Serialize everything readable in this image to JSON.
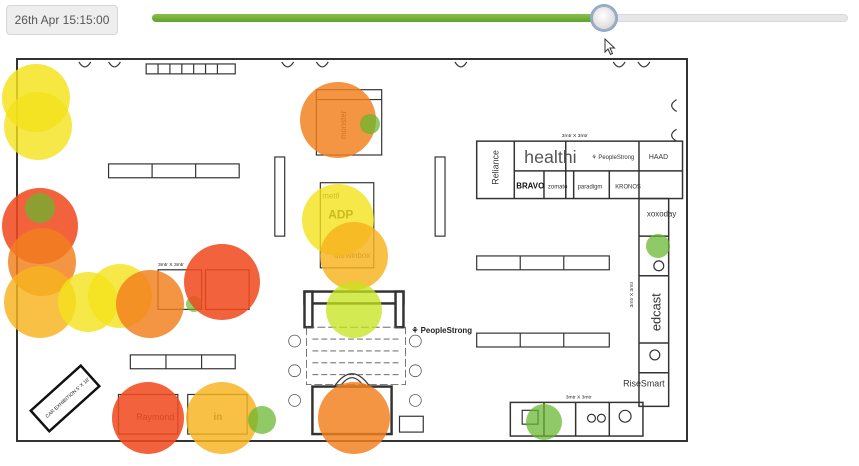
{
  "timeline": {
    "timestamp": "26th Apr 15:15:00",
    "progress_percent": 65
  },
  "floorplan": {
    "brands": {
      "healthi": "healthi",
      "peoplestrong_small": "⚘ PeopleStrong",
      "haad": "HAAD",
      "reliance": "Reliance",
      "bravo": "BRAVO",
      "zomato": "zomato",
      "paradigm": "paradigm",
      "kronos": "KRONOS",
      "xoxoday": "xoxoday",
      "edcast": "edcast",
      "risesmart": "RiseSmart",
      "raymond": "Raymond",
      "linkedin": "in",
      "peoplestrong_main": "⚘ PeopleStrong",
      "mettl": "mettl",
      "abc": "ADP",
      "darwinbox": "darwinbox",
      "monster": "monster"
    },
    "dimension_labels": {
      "top_right": "3mtr X 3mtr",
      "left_mid": "3mtr X 3mtr",
      "right_vertical": "3mtr X 3mtr",
      "bottom_right": "3mtr X 3mtr",
      "car_display": "CAR EXHIBITION 5' X 18'"
    }
  },
  "heatmap": {
    "colors": {
      "red": "#f04a1e",
      "orange": "#f2801e",
      "amber": "#f6b31e",
      "yellow": "#f4e21a",
      "lime": "#c6e41c",
      "green": "#66b62e"
    },
    "spots": [
      {
        "zone": "left-top",
        "color": "yellow",
        "intensity": 0.8
      },
      {
        "zone": "left-top-lower",
        "color": "yellow",
        "intensity": 0.7
      },
      {
        "zone": "left-mid",
        "color": "red",
        "intensity": 0.9
      },
      {
        "zone": "left-mid-green",
        "color": "green",
        "intensity": 0.5
      },
      {
        "zone": "left-mid-lower",
        "color": "orange",
        "intensity": 0.8
      },
      {
        "zone": "left-lower",
        "color": "amber",
        "intensity": 0.8
      },
      {
        "zone": "aisle-yellow-1",
        "color": "yellow",
        "intensity": 0.7
      },
      {
        "zone": "aisle-yellow-2",
        "color": "yellow",
        "intensity": 0.7
      },
      {
        "zone": "aisle-orange",
        "color": "orange",
        "intensity": 0.8
      },
      {
        "zone": "aisle-green",
        "color": "green",
        "intensity": 0.4
      },
      {
        "zone": "aisle-red",
        "color": "red",
        "intensity": 0.9
      },
      {
        "zone": "top-center",
        "color": "orange",
        "intensity": 0.8
      },
      {
        "zone": "top-center-green",
        "color": "green",
        "intensity": 0.5
      },
      {
        "zone": "center-yellow",
        "color": "yellow",
        "intensity": 0.7
      },
      {
        "zone": "center-amber",
        "color": "amber",
        "intensity": 0.8
      },
      {
        "zone": "center-lime",
        "color": "lime",
        "intensity": 0.6
      },
      {
        "zone": "right-green",
        "color": "green",
        "intensity": 0.5
      },
      {
        "zone": "bottom-red",
        "color": "red",
        "intensity": 0.9
      },
      {
        "zone": "bottom-amber",
        "color": "amber",
        "intensity": 0.8
      },
      {
        "zone": "bottom-green",
        "color": "green",
        "intensity": 0.5
      },
      {
        "zone": "bottom-center",
        "color": "orange",
        "intensity": 0.8
      },
      {
        "zone": "bottom-right-green",
        "color": "green",
        "intensity": 0.5
      }
    ]
  }
}
